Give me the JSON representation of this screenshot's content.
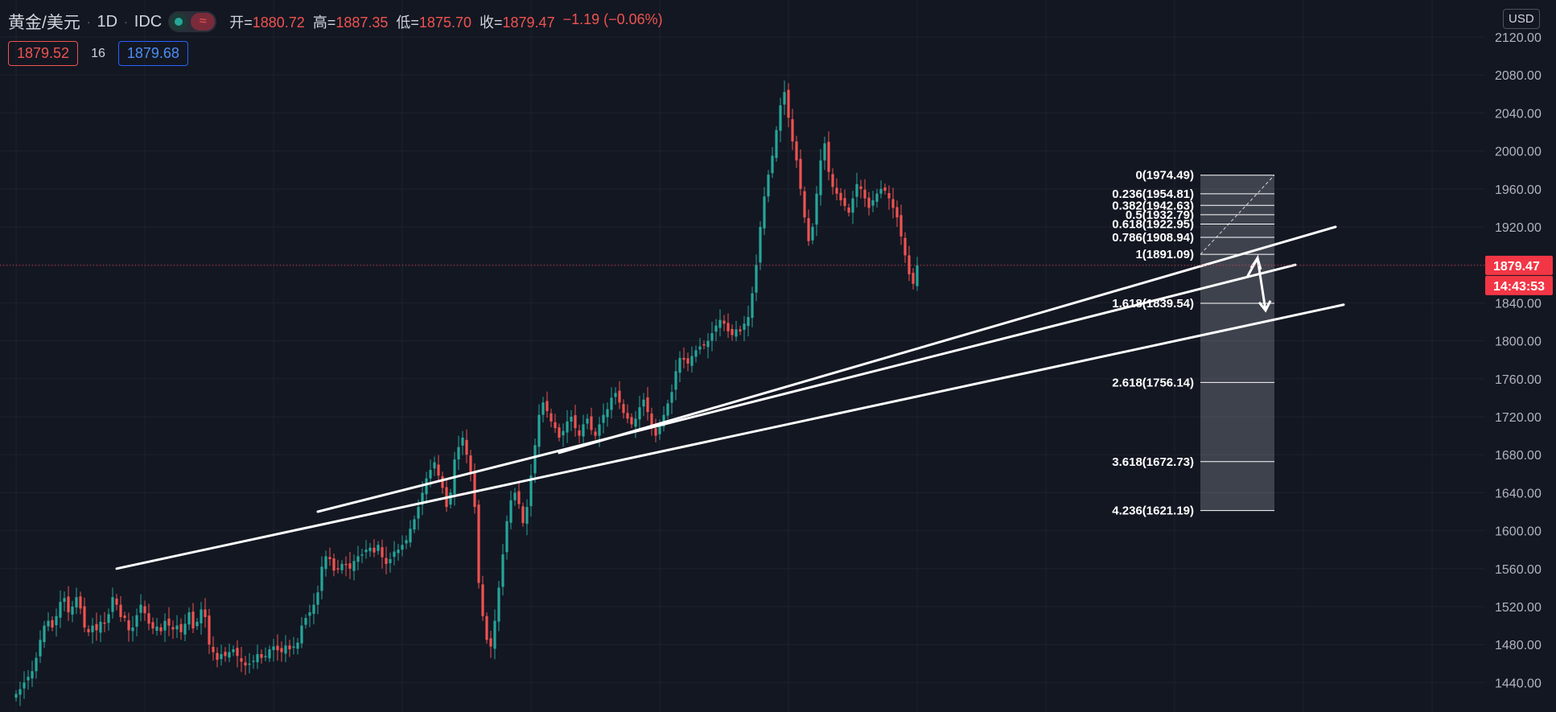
{
  "header": {
    "symbol": "黄金/美元",
    "interval": "1D",
    "source": "IDC",
    "separator": "·",
    "toggle_icon": "≈",
    "open_label": "开=",
    "open": "1880.72",
    "high_label": "高=",
    "high": "1887.35",
    "low_label": "低=",
    "low": "1875.70",
    "close_label": "收=",
    "close": "1879.47",
    "change": "−1.19 (−0.06%)"
  },
  "quote": {
    "sell": "1879.52",
    "spread": "16",
    "buy": "1879.68"
  },
  "currency": "USD",
  "colors": {
    "up": "#26a69a",
    "down": "#ef5350",
    "background": "#131722",
    "line": "#ffffff",
    "price_tag": "#f23645"
  },
  "chart_data": {
    "type": "candlestick",
    "y_axis": {
      "min": 1400,
      "max": 2140,
      "ticks": [
        "2120.00",
        "2080.00",
        "2040.00",
        "2000.00",
        "1960.00",
        "1920.00",
        "1880.00",
        "1840.00",
        "1800.00",
        "1760.00",
        "1720.00",
        "1680.00",
        "1640.00",
        "1600.00",
        "1560.00",
        "1520.00",
        "1480.00",
        "1440.00"
      ]
    },
    "last_price": "1879.47",
    "countdown": "14:43:53",
    "last_price_value": 1879.47,
    "series_close": [
      1428,
      1433,
      1440,
      1446,
      1452,
      1466,
      1485,
      1500,
      1505,
      1498,
      1510,
      1525,
      1529,
      1514,
      1520,
      1530,
      1518,
      1498,
      1493,
      1500,
      1495,
      1504,
      1502,
      1512,
      1530,
      1522,
      1509,
      1508,
      1495,
      1498,
      1511,
      1522,
      1513,
      1502,
      1497,
      1499,
      1494,
      1505,
      1500,
      1496,
      1500,
      1493,
      1502,
      1514,
      1497,
      1504,
      1517,
      1509,
      1480,
      1472,
      1464,
      1470,
      1468,
      1472,
      1475,
      1468,
      1462,
      1458,
      1460,
      1463,
      1470,
      1466,
      1468,
      1475,
      1478,
      1474,
      1472,
      1479,
      1475,
      1478,
      1482,
      1500,
      1508,
      1514,
      1522,
      1535,
      1562,
      1573,
      1570,
      1558,
      1560,
      1565,
      1564,
      1560,
      1568,
      1573,
      1575,
      1580,
      1582,
      1577,
      1585,
      1572,
      1565,
      1570,
      1578,
      1580,
      1585,
      1590,
      1602,
      1612,
      1625,
      1640,
      1655,
      1664,
      1672,
      1658,
      1645,
      1625,
      1640,
      1675,
      1688,
      1698,
      1680,
      1660,
      1625,
      1545,
      1510,
      1485,
      1478,
      1505,
      1540,
      1575,
      1610,
      1632,
      1640,
      1628,
      1608,
      1625,
      1658,
      1690,
      1722,
      1735,
      1726,
      1715,
      1708,
      1698,
      1705,
      1715,
      1720,
      1708,
      1700,
      1712,
      1718,
      1706,
      1700,
      1712,
      1722,
      1728,
      1740,
      1745,
      1735,
      1724,
      1718,
      1712,
      1718,
      1730,
      1738,
      1725,
      1708,
      1700,
      1712,
      1722,
      1734,
      1746,
      1768,
      1782,
      1780,
      1776,
      1784,
      1790,
      1794,
      1795,
      1800,
      1808,
      1816,
      1822,
      1818,
      1810,
      1806,
      1812,
      1810,
      1818,
      1825,
      1850,
      1880,
      1920,
      1952,
      1975,
      1995,
      2022,
      2048,
      2062,
      2035,
      2010,
      1990,
      1960,
      1930,
      1905,
      1920,
      1955,
      1990,
      2008,
      1978,
      1962,
      1955,
      1948,
      1942,
      1935,
      1950,
      1965,
      1960,
      1950,
      1940,
      1948,
      1955,
      1960,
      1958,
      1950,
      1940,
      1930,
      1910,
      1890,
      1870,
      1860,
      1879.47
    ],
    "trendlines": [
      {
        "from": [
          25,
          1560
        ],
        "to": [
          330,
          1838
        ]
      },
      {
        "from": [
          135,
          1682
        ],
        "to": [
          328,
          1920
        ]
      },
      {
        "from": [
          75,
          1620
        ],
        "to": [
          318,
          1880
        ]
      }
    ],
    "fibonacci": {
      "levels": [
        {
          "ratio": "0",
          "price": 1974.49
        },
        {
          "ratio": "0.236",
          "price": 1954.81
        },
        {
          "ratio": "0.382",
          "price": 1942.63
        },
        {
          "ratio": "0.5",
          "price": 1932.79
        },
        {
          "ratio": "0.618",
          "price": 1922.95
        },
        {
          "ratio": "0.786",
          "price": 1908.94
        },
        {
          "ratio": "1",
          "price": 1891.09
        },
        {
          "ratio": "1.618",
          "price": 1839.54
        },
        {
          "ratio": "2.618",
          "price": 1756.14
        },
        {
          "ratio": "3.618",
          "price": 1672.73
        },
        {
          "ratio": "4.236",
          "price": 1621.19
        }
      ],
      "labels": [
        "0(1974.49)",
        "0.236(1954.81)",
        "0.382(1942.63)",
        "0.5(1932.79)",
        "0.618(1922.95)",
        "0.786(1908.94)",
        "1(1891.09)",
        "1.618(1839.54)",
        "2.618(1756.14)",
        "3.618(1672.73)",
        "4.236(1621.19)"
      ]
    },
    "projection": {
      "points": [
        [
          1862,
          1867
        ],
        [
          1877,
          1887
        ],
        [
          1885,
          1832
        ]
      ]
    }
  }
}
